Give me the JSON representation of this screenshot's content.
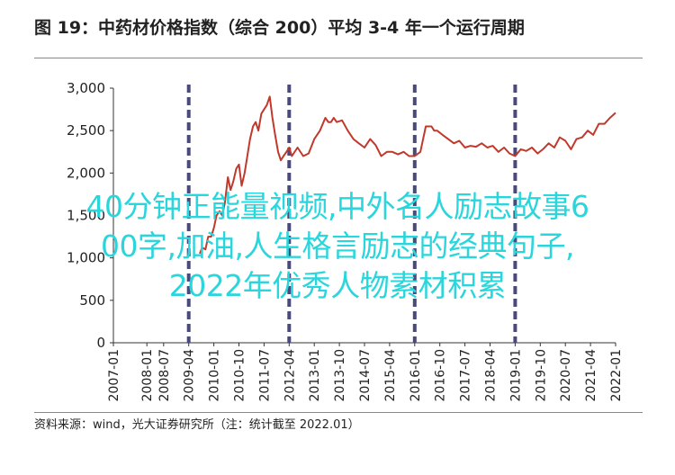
{
  "title": "图 19：中药材价格指数（综合 200）平均 3-4 年一个运行周期",
  "overlay_text": {
    "line1": "40分钟正能量视频,中外名人励志故事6",
    "line2": "00字,加油,人生格言励志的经典句子,",
    "line3": "2022年优秀人物素材积累"
  },
  "source": "资料来源：wind，光大证券研究所（注：统计截至 2022.01）",
  "colors": {
    "line": "#c0392b",
    "marker": "#4a4a7a",
    "text": "#222222",
    "overlay": "#29d6dc"
  },
  "chart_data": {
    "type": "line",
    "ylim": [
      0,
      3000
    ],
    "yticks": [
      0,
      500,
      1000,
      1500,
      2000,
      2500,
      3000
    ],
    "ytick_labels": [
      "0",
      "500",
      "1,000",
      "1,500",
      "2,000",
      "2,500",
      "3,000"
    ],
    "xlim": [
      2007.0,
      2022.0
    ],
    "xtick_labels": [
      "2007-01",
      "2008-01",
      "2008-07",
      "2009-04",
      "2010-01",
      "2010-10",
      "2011-07",
      "2012-04",
      "2013-01",
      "2013-10",
      "2014-07",
      "2015-04",
      "2016-01",
      "2016-10",
      "2017-07",
      "2018-04",
      "2019-01",
      "2019-10",
      "2020-07",
      "2021-04",
      "2022-01"
    ],
    "cycle_markers": [
      "2009-04",
      "2012-04",
      "2016-01",
      "2019-01"
    ],
    "series": [
      {
        "x": [
          2009.58,
          2009.65,
          2009.75,
          2009.83,
          2009.92,
          2010.0,
          2010.08,
          2010.17,
          2010.25,
          2010.33,
          2010.42,
          2010.5,
          2010.58,
          2010.67,
          2010.75,
          2010.83,
          2010.92,
          2011.0,
          2011.08,
          2011.17,
          2011.25,
          2011.33,
          2011.42,
          2011.5,
          2011.58,
          2011.67,
          2011.75,
          2011.83,
          2011.92,
          2012.0,
          2012.08,
          2012.17,
          2012.25,
          2012.33,
          2012.5,
          2012.67,
          2012.83,
          2013.0,
          2013.17,
          2013.33,
          2013.42,
          2013.5,
          2013.58,
          2013.67,
          2013.83,
          2014.0,
          2014.17,
          2014.33,
          2014.5,
          2014.67,
          2014.83,
          2015.0,
          2015.17,
          2015.33,
          2015.5,
          2015.67,
          2015.83,
          2016.0,
          2016.17,
          2016.33,
          2016.5,
          2016.58,
          2016.67,
          2016.83,
          2017.0,
          2017.17,
          2017.33,
          2017.5,
          2017.67,
          2017.83,
          2018.0,
          2018.17,
          2018.33,
          2018.5,
          2018.67,
          2018.83,
          2019.0,
          2019.17,
          2019.33,
          2019.5,
          2019.67,
          2019.83,
          2020.0,
          2020.17,
          2020.33,
          2020.5,
          2020.67,
          2020.83,
          2021.0,
          2021.17,
          2021.33,
          2021.5,
          2021.67,
          2021.83,
          2022.0
        ],
        "y": [
          1050,
          1120,
          1100,
          1250,
          1250,
          1350,
          1500,
          1550,
          1500,
          1650,
          1950,
          1800,
          1900,
          2050,
          2100,
          1850,
          2000,
          2200,
          2400,
          2550,
          2600,
          2500,
          2700,
          2750,
          2800,
          2900,
          2650,
          2450,
          2250,
          2150,
          2200,
          2250,
          2300,
          2200,
          2300,
          2200,
          2230,
          2400,
          2500,
          2650,
          2600,
          2600,
          2650,
          2600,
          2620,
          2500,
          2400,
          2350,
          2300,
          2400,
          2330,
          2200,
          2250,
          2250,
          2220,
          2250,
          2200,
          2200,
          2250,
          2550,
          2550,
          2500,
          2500,
          2450,
          2400,
          2350,
          2380,
          2300,
          2320,
          2310,
          2350,
          2300,
          2320,
          2250,
          2300,
          2230,
          2200,
          2280,
          2260,
          2300,
          2230,
          2280,
          2350,
          2300,
          2420,
          2380,
          2280,
          2400,
          2420,
          2500,
          2450,
          2580,
          2580,
          2650,
          2710
        ]
      }
    ]
  }
}
